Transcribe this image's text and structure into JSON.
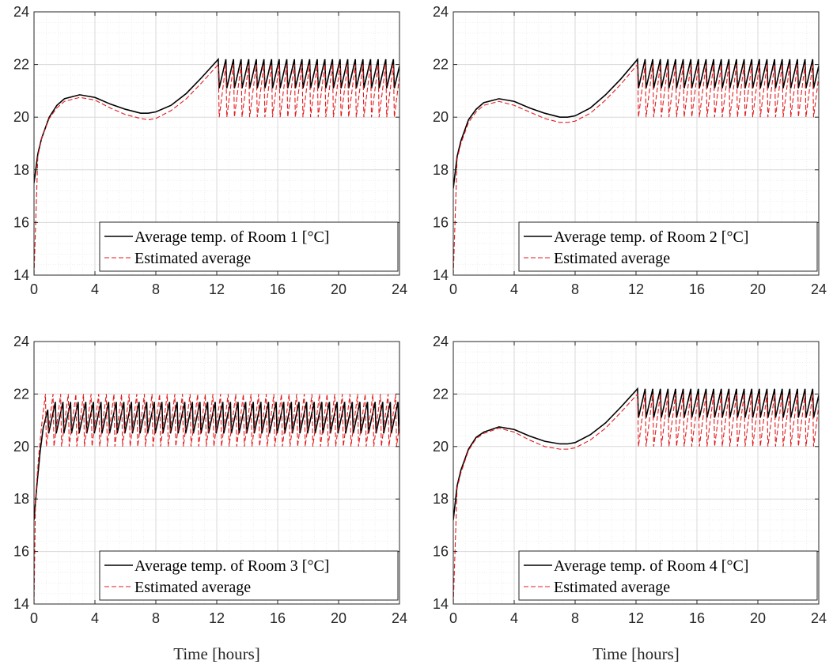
{
  "colors": {
    "measured": "#000000",
    "estimated": "#e41a1c",
    "grid_major": "#d9d9d9",
    "grid_minor": "#eeeeee",
    "axes": "#262626"
  },
  "chart_data": [
    {
      "type": "line",
      "xlabel": "",
      "ylabel": "",
      "xlim": [
        0,
        24
      ],
      "ylim": [
        14,
        24
      ],
      "xticks": [
        0,
        4,
        8,
        12,
        16,
        20,
        24
      ],
      "yticks": [
        14,
        16,
        18,
        20,
        22,
        24
      ],
      "grid": "major and minor",
      "legend_position": "bottom-right",
      "series": [
        {
          "name": "Average temp. of Room 1 [°C]",
          "style": "solid",
          "color": "#000000",
          "x": [
            0,
            0.25,
            0.5,
            1,
            1.5,
            2,
            3,
            4,
            5,
            6,
            7,
            7.5,
            8,
            9,
            10,
            11,
            12.1
          ],
          "y": [
            17.5,
            18.6,
            19.2,
            20.0,
            20.45,
            20.7,
            20.85,
            20.75,
            20.5,
            20.3,
            20.15,
            20.15,
            20.2,
            20.45,
            20.9,
            21.5,
            22.2
          ],
          "oscillation": {
            "start": 12.1,
            "period": 0.5,
            "low": 21.1,
            "high": 22.2
          }
        },
        {
          "name": "Estimated average",
          "style": "dashed",
          "color": "#e41a1c",
          "x": [
            0,
            0.25,
            0.5,
            1,
            1.5,
            2,
            3,
            4,
            5,
            6,
            7,
            7.5,
            8,
            9,
            10,
            11,
            12.1
          ],
          "y": [
            14,
            18.5,
            19.2,
            19.95,
            20.35,
            20.6,
            20.75,
            20.65,
            20.35,
            20.1,
            19.95,
            19.9,
            19.95,
            20.25,
            20.7,
            21.3,
            22.0
          ],
          "oscillation": {
            "start": 12.1,
            "period": 0.5,
            "low": 20.0,
            "high": 22.0
          }
        }
      ]
    },
    {
      "type": "line",
      "xlabel": "",
      "ylabel": "",
      "xlim": [
        0,
        24
      ],
      "ylim": [
        14,
        24
      ],
      "xticks": [
        0,
        4,
        8,
        12,
        16,
        20,
        24
      ],
      "yticks": [
        14,
        16,
        18,
        20,
        22,
        24
      ],
      "grid": "major and minor",
      "legend_position": "bottom-right",
      "series": [
        {
          "name": "Average temp. of Room 2 [°C]",
          "style": "solid",
          "color": "#000000",
          "x": [
            0,
            0.25,
            0.5,
            1,
            1.5,
            2,
            3,
            4,
            5,
            6,
            7,
            7.5,
            8,
            9,
            10,
            11,
            12.1
          ],
          "y": [
            17.3,
            18.5,
            19.1,
            19.9,
            20.3,
            20.55,
            20.7,
            20.6,
            20.35,
            20.15,
            20.0,
            20.0,
            20.05,
            20.35,
            20.85,
            21.45,
            22.2
          ],
          "oscillation": {
            "start": 12.1,
            "period": 0.5,
            "low": 21.1,
            "high": 22.2
          }
        },
        {
          "name": "Estimated average",
          "style": "dashed",
          "color": "#e41a1c",
          "x": [
            0,
            0.25,
            0.5,
            1,
            1.5,
            2,
            3,
            4,
            5,
            6,
            7,
            7.5,
            8,
            9,
            10,
            11,
            12.1
          ],
          "y": [
            14,
            18.4,
            19.0,
            19.8,
            20.2,
            20.45,
            20.6,
            20.45,
            20.2,
            19.95,
            19.8,
            19.8,
            19.85,
            20.15,
            20.65,
            21.25,
            22.0
          ],
          "oscillation": {
            "start": 12.1,
            "period": 0.5,
            "low": 20.0,
            "high": 22.0
          }
        }
      ]
    },
    {
      "type": "line",
      "xlabel": "Time [hours]",
      "ylabel": "",
      "xlim": [
        0,
        24
      ],
      "ylim": [
        14,
        24
      ],
      "xticks": [
        0,
        4,
        8,
        12,
        16,
        20,
        24
      ],
      "yticks": [
        14,
        16,
        18,
        20,
        22,
        24
      ],
      "grid": "major and minor",
      "legend_position": "bottom-right",
      "series": [
        {
          "name": "Average temp. of Room 3 [°C]",
          "style": "solid",
          "color": "#000000",
          "x": [
            0,
            0.2,
            0.4,
            0.6,
            0.9
          ],
          "y": [
            17.2,
            18.6,
            19.8,
            20.7,
            21.4
          ],
          "oscillation": {
            "start": 0.9,
            "period": 0.5,
            "low": 20.5,
            "high": 21.7
          }
        },
        {
          "name": "Estimated average",
          "style": "dashed",
          "color": "#e41a1c",
          "x": [
            0,
            0.1,
            0.3,
            0.5,
            0.75
          ],
          "y": [
            14,
            18.0,
            19.6,
            20.8,
            22.0
          ],
          "oscillation": {
            "start": 0.75,
            "period": 0.5,
            "low": 20.0,
            "high": 22.0
          }
        }
      ]
    },
    {
      "type": "line",
      "xlabel": "Time [hours]",
      "ylabel": "",
      "xlim": [
        0,
        24
      ],
      "ylim": [
        14,
        24
      ],
      "xticks": [
        0,
        4,
        8,
        12,
        16,
        20,
        24
      ],
      "yticks": [
        14,
        16,
        18,
        20,
        22,
        24
      ],
      "grid": "major and minor",
      "legend_position": "bottom-right",
      "series": [
        {
          "name": "Average temp. of Room 4 [°C]",
          "style": "solid",
          "color": "#000000",
          "x": [
            0,
            0.25,
            0.5,
            1,
            1.5,
            2,
            3,
            4,
            5,
            6,
            7,
            7.5,
            8,
            9,
            10,
            11,
            12.1
          ],
          "y": [
            17.2,
            18.5,
            19.1,
            19.9,
            20.35,
            20.55,
            20.75,
            20.65,
            20.4,
            20.2,
            20.1,
            20.1,
            20.15,
            20.45,
            20.9,
            21.5,
            22.2
          ],
          "oscillation": {
            "start": 12.1,
            "period": 0.5,
            "low": 21.1,
            "high": 22.2
          }
        },
        {
          "name": "Estimated average",
          "style": "dashed",
          "color": "#e41a1c",
          "x": [
            0,
            0.25,
            0.5,
            1,
            1.5,
            2,
            3,
            4,
            5,
            6,
            7,
            7.5,
            8,
            9,
            10,
            11,
            12.1
          ],
          "y": [
            14,
            18.4,
            19.0,
            19.85,
            20.3,
            20.5,
            20.7,
            20.55,
            20.25,
            20.0,
            19.9,
            19.9,
            19.95,
            20.25,
            20.7,
            21.3,
            22.0
          ],
          "oscillation": {
            "start": 12.1,
            "period": 0.5,
            "low": 20.0,
            "high": 22.0
          }
        }
      ]
    }
  ]
}
